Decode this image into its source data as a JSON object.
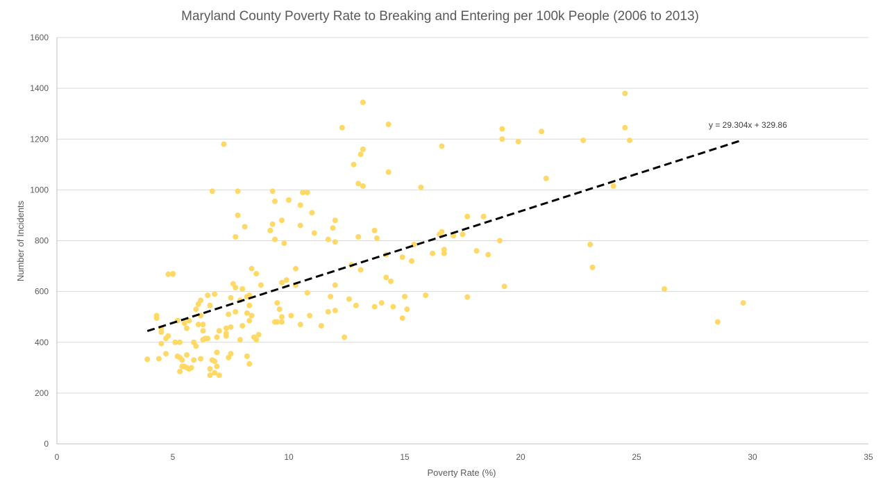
{
  "chart_data": {
    "type": "scatter",
    "title": "Maryland County Poverty Rate to Breaking and Entering per 100k People (2006 to 2013)",
    "xlabel": "Poverty Rate (%)",
    "ylabel": "Number of Incidents",
    "xlim": [
      0,
      35
    ],
    "ylim": [
      0,
      1600
    ],
    "xticks": [
      0,
      5,
      10,
      15,
      20,
      25,
      30,
      35
    ],
    "yticks": [
      0,
      200,
      400,
      600,
      800,
      1000,
      1200,
      1400,
      1600
    ],
    "grid": "horizontal",
    "legend": "none",
    "point_color": "#FFD966",
    "trendline": {
      "slope": 29.304,
      "intercept": 329.86,
      "x_range": [
        3.9,
        29.5
      ],
      "equation_label": "y = 29.304x + 329.86",
      "style": "dashed",
      "color": "#000000"
    },
    "points": [
      [
        3.9,
        333
      ],
      [
        4.3,
        505
      ],
      [
        4.3,
        495
      ],
      [
        4.4,
        335
      ],
      [
        4.5,
        455
      ],
      [
        4.5,
        440
      ],
      [
        4.5,
        395
      ],
      [
        4.7,
        355
      ],
      [
        4.7,
        415
      ],
      [
        4.8,
        425
      ],
      [
        4.8,
        668
      ],
      [
        5.0,
        670
      ],
      [
        5.0,
        668
      ],
      [
        5.1,
        400
      ],
      [
        5.2,
        485
      ],
      [
        5.2,
        345
      ],
      [
        5.3,
        400
      ],
      [
        5.3,
        285
      ],
      [
        5.3,
        340
      ],
      [
        5.4,
        330
      ],
      [
        5.4,
        305
      ],
      [
        5.5,
        475
      ],
      [
        5.5,
        305
      ],
      [
        5.6,
        455
      ],
      [
        5.6,
        350
      ],
      [
        5.6,
        300
      ],
      [
        5.7,
        485
      ],
      [
        5.7,
        295
      ],
      [
        5.8,
        300
      ],
      [
        5.9,
        400
      ],
      [
        5.9,
        330
      ],
      [
        6.0,
        530
      ],
      [
        6.0,
        385
      ],
      [
        6.1,
        550
      ],
      [
        6.1,
        470
      ],
      [
        6.2,
        565
      ],
      [
        6.2,
        505
      ],
      [
        6.2,
        335
      ],
      [
        6.3,
        470
      ],
      [
        6.3,
        445
      ],
      [
        6.3,
        410
      ],
      [
        6.4,
        415
      ],
      [
        6.5,
        585
      ],
      [
        6.5,
        415
      ],
      [
        6.6,
        545
      ],
      [
        6.6,
        295
      ],
      [
        6.6,
        270
      ],
      [
        6.7,
        995
      ],
      [
        6.7,
        330
      ],
      [
        6.8,
        590
      ],
      [
        6.8,
        325
      ],
      [
        6.8,
        280
      ],
      [
        6.9,
        420
      ],
      [
        6.9,
        360
      ],
      [
        6.9,
        305
      ],
      [
        7.0,
        445
      ],
      [
        7.0,
        270
      ],
      [
        7.2,
        1180
      ],
      [
        7.3,
        455
      ],
      [
        7.3,
        435
      ],
      [
        7.3,
        425
      ],
      [
        7.4,
        510
      ],
      [
        7.4,
        340
      ],
      [
        7.5,
        575
      ],
      [
        7.5,
        460
      ],
      [
        7.5,
        355
      ],
      [
        7.6,
        630
      ],
      [
        7.7,
        815
      ],
      [
        7.7,
        615
      ],
      [
        7.7,
        520
      ],
      [
        7.8,
        995
      ],
      [
        7.8,
        900
      ],
      [
        7.9,
        565
      ],
      [
        7.9,
        410
      ],
      [
        8.0,
        610
      ],
      [
        8.0,
        465
      ],
      [
        8.1,
        855
      ],
      [
        8.2,
        580
      ],
      [
        8.2,
        515
      ],
      [
        8.2,
        345
      ],
      [
        8.3,
        585
      ],
      [
        8.3,
        545
      ],
      [
        8.3,
        485
      ],
      [
        8.3,
        315
      ],
      [
        8.4,
        690
      ],
      [
        8.4,
        505
      ],
      [
        8.5,
        420
      ],
      [
        8.6,
        670
      ],
      [
        8.6,
        410
      ],
      [
        8.7,
        430
      ],
      [
        8.8,
        625
      ],
      [
        9.2,
        840
      ],
      [
        9.3,
        995
      ],
      [
        9.3,
        865
      ],
      [
        9.4,
        955
      ],
      [
        9.4,
        805
      ],
      [
        9.4,
        480
      ],
      [
        9.5,
        555
      ],
      [
        9.5,
        480
      ],
      [
        9.6,
        530
      ],
      [
        9.7,
        880
      ],
      [
        9.7,
        635
      ],
      [
        9.7,
        500
      ],
      [
        9.7,
        480
      ],
      [
        9.8,
        790
      ],
      [
        9.9,
        645
      ],
      [
        10.0,
        960
      ],
      [
        10.1,
        505
      ],
      [
        10.3,
        690
      ],
      [
        10.3,
        625
      ],
      [
        10.5,
        940
      ],
      [
        10.5,
        860
      ],
      [
        10.5,
        470
      ],
      [
        10.6,
        990
      ],
      [
        10.8,
        990
      ],
      [
        10.8,
        595
      ],
      [
        10.9,
        505
      ],
      [
        11.0,
        910
      ],
      [
        11.1,
        830
      ],
      [
        11.4,
        465
      ],
      [
        11.7,
        805
      ],
      [
        11.7,
        520
      ],
      [
        11.8,
        580
      ],
      [
        11.9,
        850
      ],
      [
        12.0,
        880
      ],
      [
        12.0,
        795
      ],
      [
        12.0,
        625
      ],
      [
        12.0,
        525
      ],
      [
        12.3,
        1245
      ],
      [
        12.4,
        420
      ],
      [
        12.6,
        570
      ],
      [
        12.7,
        705
      ],
      [
        12.8,
        1100
      ],
      [
        12.9,
        545
      ],
      [
        13.0,
        1025
      ],
      [
        13.0,
        815
      ],
      [
        13.1,
        1140
      ],
      [
        13.1,
        685
      ],
      [
        13.2,
        1345
      ],
      [
        13.2,
        1160
      ],
      [
        13.2,
        1015
      ],
      [
        13.7,
        840
      ],
      [
        13.7,
        540
      ],
      [
        13.8,
        810
      ],
      [
        14.0,
        555
      ],
      [
        14.2,
        745
      ],
      [
        14.2,
        655
      ],
      [
        14.3,
        1258
      ],
      [
        14.3,
        1070
      ],
      [
        14.4,
        640
      ],
      [
        14.5,
        540
      ],
      [
        14.9,
        735
      ],
      [
        14.9,
        495
      ],
      [
        15.0,
        580
      ],
      [
        15.1,
        530
      ],
      [
        15.3,
        720
      ],
      [
        15.4,
        785
      ],
      [
        15.7,
        1010
      ],
      [
        15.9,
        585
      ],
      [
        16.2,
        750
      ],
      [
        16.5,
        825
      ],
      [
        16.6,
        1172
      ],
      [
        16.6,
        835
      ],
      [
        16.7,
        765
      ],
      [
        16.7,
        750
      ],
      [
        17.1,
        820
      ],
      [
        17.5,
        825
      ],
      [
        17.7,
        895
      ],
      [
        17.7,
        578
      ],
      [
        18.1,
        760
      ],
      [
        18.4,
        895
      ],
      [
        18.6,
        745
      ],
      [
        19.1,
        800
      ],
      [
        19.2,
        1240
      ],
      [
        19.2,
        1200
      ],
      [
        19.3,
        620
      ],
      [
        19.9,
        1190
      ],
      [
        20.9,
        1230
      ],
      [
        21.1,
        1045
      ],
      [
        22.7,
        1195
      ],
      [
        23.0,
        785
      ],
      [
        23.1,
        695
      ],
      [
        24.0,
        1015
      ],
      [
        24.5,
        1380
      ],
      [
        24.5,
        1245
      ],
      [
        24.7,
        1195
      ],
      [
        26.2,
        610
      ],
      [
        28.5,
        480
      ],
      [
        29.6,
        555
      ]
    ]
  }
}
